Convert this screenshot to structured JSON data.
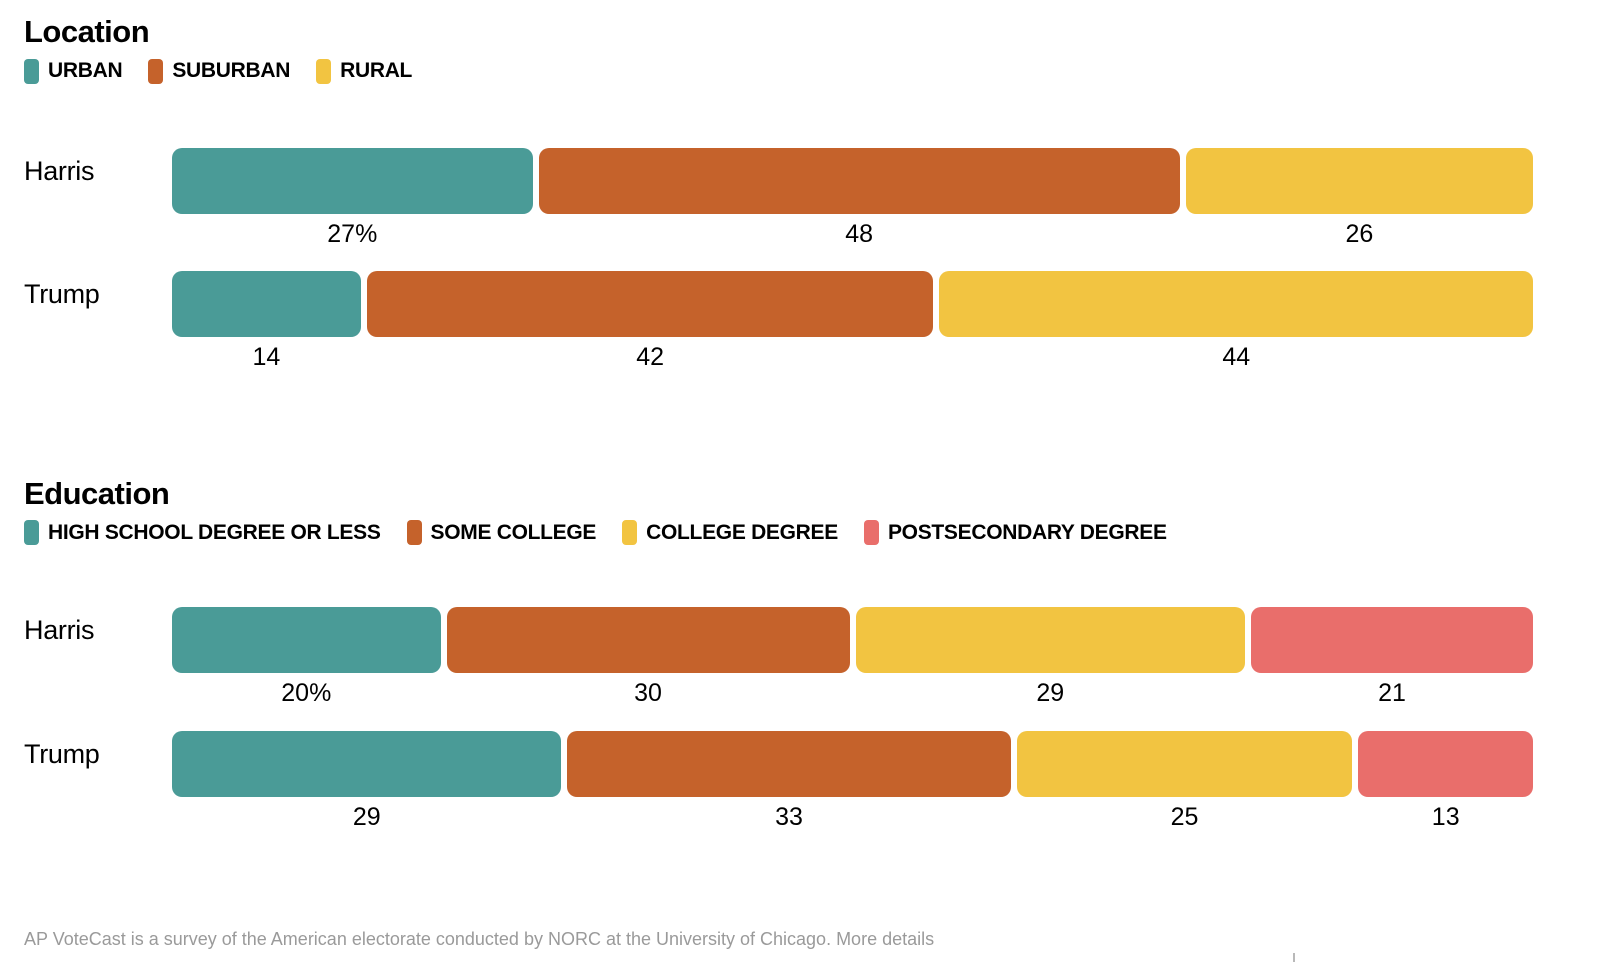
{
  "colors": {
    "teal": "#4A9B97",
    "orange": "#C5622B",
    "yellow": "#F2C441",
    "red": "#E96E6B",
    "caption_gray": "#9a9a9a"
  },
  "caption": {
    "text": "AP VoteCast is a survey of the American electorate conducted by NORC at the University of Chicago. More details"
  },
  "chart_data": [
    {
      "type": "bar",
      "title": "Location",
      "orientation": "horizontal",
      "stacked": true,
      "legend_position": "top",
      "grid": false,
      "xlim": [
        0,
        101
      ],
      "categories": [
        "Harris",
        "Trump"
      ],
      "series": [
        {
          "name": "URBAN",
          "color": "#4A9B97",
          "values": [
            27,
            14
          ]
        },
        {
          "name": "SUBURBAN",
          "color": "#C5622B",
          "values": [
            48,
            42
          ]
        },
        {
          "name": "RURAL",
          "color": "#F2C441",
          "values": [
            26,
            44
          ]
        }
      ],
      "legend": [
        {
          "label": "URBAN",
          "color": "#4A9B97"
        },
        {
          "label": "SUBURBAN",
          "color": "#C5622B"
        },
        {
          "label": "RURAL",
          "color": "#F2C441"
        }
      ],
      "rows": [
        {
          "label": "Harris",
          "segments": [
            {
              "name": "URBAN",
              "value": 27,
              "display": "27%",
              "color": "#4A9B97"
            },
            {
              "name": "SUBURBAN",
              "value": 48,
              "display": "48",
              "color": "#C5622B"
            },
            {
              "name": "RURAL",
              "value": 26,
              "display": "26",
              "color": "#F2C441"
            }
          ]
        },
        {
          "label": "Trump",
          "segments": [
            {
              "name": "URBAN",
              "value": 14,
              "display": "14",
              "color": "#4A9B97"
            },
            {
              "name": "SUBURBAN",
              "value": 42,
              "display": "42",
              "color": "#C5622B"
            },
            {
              "name": "RURAL",
              "value": 44,
              "display": "44",
              "color": "#F2C441"
            }
          ]
        }
      ]
    },
    {
      "type": "bar",
      "title": "Education",
      "orientation": "horizontal",
      "stacked": true,
      "legend_position": "top",
      "grid": false,
      "xlim": [
        0,
        100
      ],
      "categories": [
        "Harris",
        "Trump"
      ],
      "series": [
        {
          "name": "HIGH SCHOOL DEGREE OR LESS",
          "color": "#4A9B97",
          "values": [
            20,
            29
          ]
        },
        {
          "name": "SOME COLLEGE",
          "color": "#C5622B",
          "values": [
            30,
            33
          ]
        },
        {
          "name": "COLLEGE DEGREE",
          "color": "#F2C441",
          "values": [
            29,
            25
          ]
        },
        {
          "name": "POSTSECONDARY DEGREE",
          "color": "#E96E6B",
          "values": [
            21,
            13
          ]
        }
      ],
      "legend": [
        {
          "label": "HIGH SCHOOL DEGREE OR LESS",
          "color": "#4A9B97"
        },
        {
          "label": "SOME COLLEGE",
          "color": "#C5622B"
        },
        {
          "label": "COLLEGE DEGREE",
          "color": "#F2C441"
        },
        {
          "label": "POSTSECONDARY DEGREE",
          "color": "#E96E6B"
        }
      ],
      "rows": [
        {
          "label": "Harris",
          "segments": [
            {
              "name": "HIGH SCHOOL DEGREE OR LESS",
              "value": 20,
              "display": "20%",
              "color": "#4A9B97"
            },
            {
              "name": "SOME COLLEGE",
              "value": 30,
              "display": "30",
              "color": "#C5622B"
            },
            {
              "name": "COLLEGE DEGREE",
              "value": 29,
              "display": "29",
              "color": "#F2C441"
            },
            {
              "name": "POSTSECONDARY DEGREE",
              "value": 21,
              "display": "21",
              "color": "#E96E6B"
            }
          ]
        },
        {
          "label": "Trump",
          "segments": [
            {
              "name": "HIGH SCHOOL DEGREE OR LESS",
              "value": 29,
              "display": "29",
              "color": "#4A9B97"
            },
            {
              "name": "SOME COLLEGE",
              "value": 33,
              "display": "33",
              "color": "#C5622B"
            },
            {
              "name": "COLLEGE DEGREE",
              "value": 25,
              "display": "25",
              "color": "#F2C441"
            },
            {
              "name": "POSTSECONDARY DEGREE",
              "value": 13,
              "display": "13",
              "color": "#E96E6B"
            }
          ]
        }
      ]
    }
  ]
}
